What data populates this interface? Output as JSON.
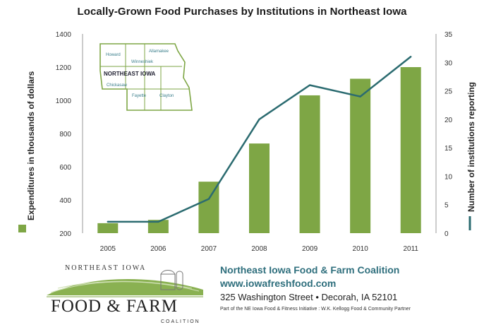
{
  "chart_data": {
    "type": "bar",
    "title": "Locally-Grown Food Purchases by Institutions in Northeast Iowa",
    "categories": [
      "2005",
      "2006",
      "2007",
      "2008",
      "2009",
      "2010",
      "2011"
    ],
    "series": [
      {
        "name": "Expenditures in thousands of dollars",
        "type": "bar",
        "axis": "left",
        "color": "#7ea645",
        "values": [
          260,
          280,
          510,
          740,
          1030,
          1130,
          1200
        ]
      },
      {
        "name": "Number of institutions reporting",
        "type": "line",
        "axis": "right",
        "color": "#2b6b70",
        "values": [
          2,
          2,
          6,
          20,
          26,
          24,
          31
        ]
      }
    ],
    "ylabel": "Expenditures in thousands of dollars",
    "y2label": "Number of institutions reporting",
    "ylim": [
      200,
      1400
    ],
    "y2lim": [
      0,
      35
    ],
    "yticks": [
      200,
      400,
      600,
      800,
      1000,
      1200,
      1400
    ],
    "y2ticks": [
      0,
      5,
      10,
      15,
      20,
      25,
      30,
      35
    ],
    "grid": false,
    "legend": "left and right vertical axis titles"
  },
  "inset_map": {
    "title": "NORTHEAST IOWA",
    "counties": [
      "Howard",
      "Allamakee",
      "Winneshiek",
      "Chickasaw",
      "Fayette",
      "Clayton"
    ]
  },
  "logo": {
    "top_text": "NORTHEAST IOWA",
    "main_text": "FOOD & FARM",
    "sub_text": "COALITION"
  },
  "footer": {
    "org_name": "Northeast Iowa Food & Farm Coalition",
    "url": "www.iowafreshfood.com",
    "address": "325 Washington Street • Decorah, IA  52101",
    "partner_note": "Part of the NE Iowa Food & Fitness Initiative : W.K. Kellogg Food & Community Partner"
  }
}
